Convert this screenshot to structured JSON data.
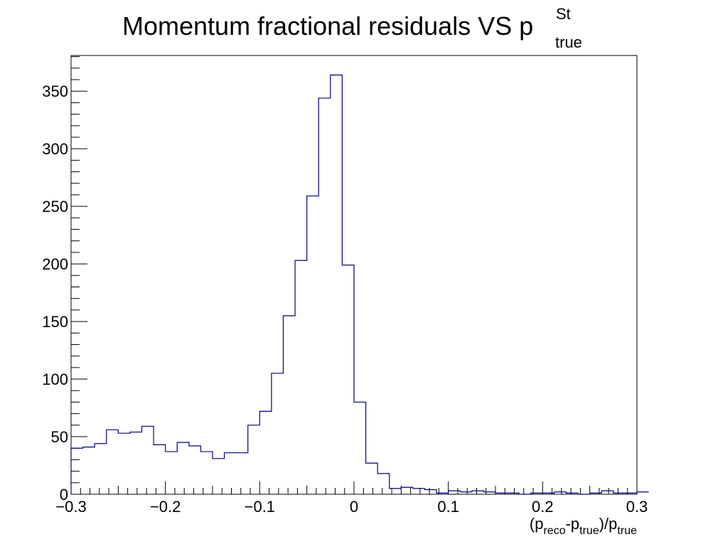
{
  "chart_data": {
    "type": "histogram",
    "title": {
      "main": "Momentum fractional residuals VS p",
      "superscript": "St",
      "subscript": "true"
    },
    "xlabel": {
      "open": "(p",
      "sub1": "reco",
      "mid": "-p",
      "sub2": "true",
      "close": ")/p",
      "sub3": "true"
    },
    "ylabel": "",
    "xlim": [
      -0.3,
      0.3
    ],
    "ylim": [
      0,
      381
    ],
    "x_ticks": [
      -0.3,
      -0.2,
      -0.1,
      0,
      0.1,
      0.2,
      0.3
    ],
    "x_tick_labels": [
      "−0.3",
      "−0.2",
      "−0.1",
      "0",
      "0.1",
      "0.2",
      "0.3"
    ],
    "y_ticks": [
      0,
      50,
      100,
      150,
      200,
      250,
      300,
      350
    ],
    "y_tick_labels": [
      "0",
      "50",
      "100",
      "150",
      "200",
      "250",
      "300",
      "350"
    ],
    "bin_width": 0.0125,
    "bin_edges_start": -0.3,
    "values": [
      40,
      41,
      44,
      56,
      53,
      54,
      59,
      43,
      37,
      45,
      42,
      37,
      31,
      36,
      36,
      60,
      72,
      105,
      155,
      203,
      259,
      344,
      364,
      199,
      80,
      27,
      18,
      5,
      6,
      5,
      4,
      1,
      3,
      2,
      3,
      2,
      1,
      1,
      0,
      1,
      1,
      2,
      1,
      0,
      1,
      3,
      1,
      1,
      2
    ],
    "line_color": "#000080",
    "grid": false,
    "legend": "none"
  }
}
